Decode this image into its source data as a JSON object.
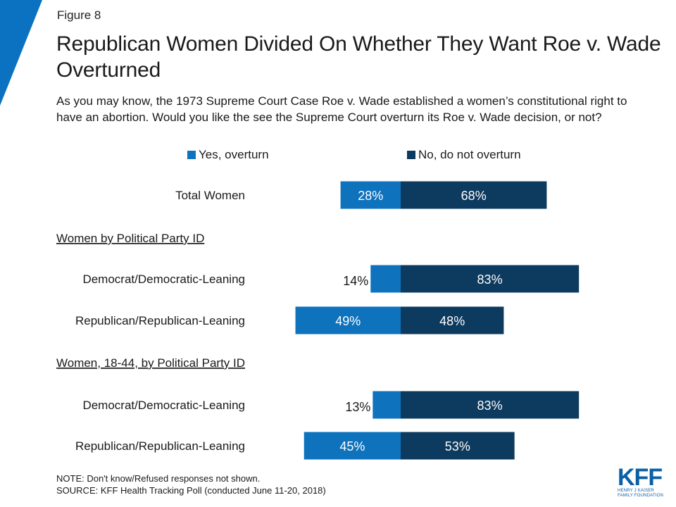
{
  "figure_label": "Figure 8",
  "title": "Republican Women Divided On Whether They Want Roe v. Wade Overturned",
  "subtitle": "As you may know, the 1973 Supreme Court Case Roe v. Wade established a women’s constitutional right to have an abortion. Would you like the see the Supreme Court overturn its Roe v. Wade decision, or not?",
  "notes": {
    "note": "NOTE: Don't know/Refused responses not shown.",
    "source": "SOURCE: KFF Health Tracking Poll (conducted June 11-20, 2018)"
  },
  "logo": {
    "text": "KFF",
    "sub1": "HENRY J KAISER",
    "sub2": "FAMILY FOUNDATION"
  },
  "colors": {
    "yes": "#0e72bd",
    "no": "#0d3a5f",
    "corner": "#0a72c0"
  },
  "chart_data": {
    "type": "bar",
    "orientation": "horizontal-diverging",
    "legend": [
      {
        "name": "Yes, overturn",
        "color": "#0e72bd"
      },
      {
        "name": "No, do not overturn",
        "color": "#0d3a5f"
      }
    ],
    "rows": [
      {
        "kind": "category",
        "label": "Total Women",
        "yes": 28,
        "no": 68,
        "yes_label": "28%",
        "no_label": "68%"
      },
      {
        "kind": "header",
        "label": "Women by Political Party ID"
      },
      {
        "kind": "category",
        "label": "Democrat/Democratic-Leaning",
        "yes": 14,
        "no": 83,
        "yes_label": "14%",
        "no_label": "83%"
      },
      {
        "kind": "category",
        "label": "Republican/Republican-Leaning",
        "yes": 49,
        "no": 48,
        "yes_label": "49%",
        "no_label": "48%"
      },
      {
        "kind": "header",
        "label": "Women, 18-44, by Political Party ID"
      },
      {
        "kind": "category",
        "label": "Democrat/Democratic-Leaning",
        "yes": 13,
        "no": 83,
        "yes_label": "13%",
        "no_label": "83%"
      },
      {
        "kind": "category",
        "label": "Republican/Republican-Leaning",
        "yes": 45,
        "no": 53,
        "yes_label": "45%",
        "no_label": "53%"
      }
    ]
  }
}
